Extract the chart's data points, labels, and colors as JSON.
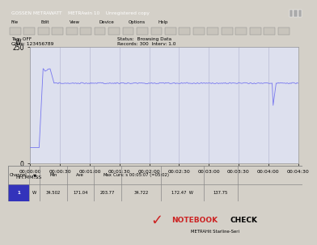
{
  "title_bar": "GOSSEN METRAWATT    METRAwin 10    Unregistered copy",
  "tag": "Tag: OFF",
  "chan": "Chan: 123456789",
  "status": "Status:  Browsing Data",
  "records": "Records: 300  Interv: 1.0",
  "y_max": 250,
  "y_min": 0,
  "y_label": "W",
  "x_ticks": [
    "00:00:00",
    "00:00:30",
    "00:01:00",
    "00:01:30",
    "00:02:00",
    "00:02:30",
    "00:03:00",
    "00:03:30",
    "00:04:00",
    "00:04:30"
  ],
  "x_label": "HH:MM:SS",
  "line_color": "#7777ee",
  "bg_color": "#d4d0c8",
  "plot_bg": "#dde0ee",
  "grid_color": "#b0b0cc",
  "baseline_low": 34.5,
  "spike_time": 10,
  "spike_peak": 203.77,
  "stable_level": 172.5,
  "drop_time": 243,
  "drop_low": 125,
  "total_seconds": 270,
  "channel": "1",
  "ch_label": "W",
  "min_val": "34.502",
  "avg_val": "171.04",
  "max_val": "203.77",
  "cur_time": "00:05:07 (=05:02)",
  "cur_val": "34.722",
  "cur_unit": "W",
  "cur_extra": "172.47  W",
  "cur_last": "137.75",
  "notebookcheck_red": "#cc2222",
  "title_bg": "#0058a8",
  "toolbar_bg": "#d4d0c8",
  "table_bg": "#d4d0c8",
  "table_line": "#888888",
  "status_bar_bg": "#d4d0c8"
}
